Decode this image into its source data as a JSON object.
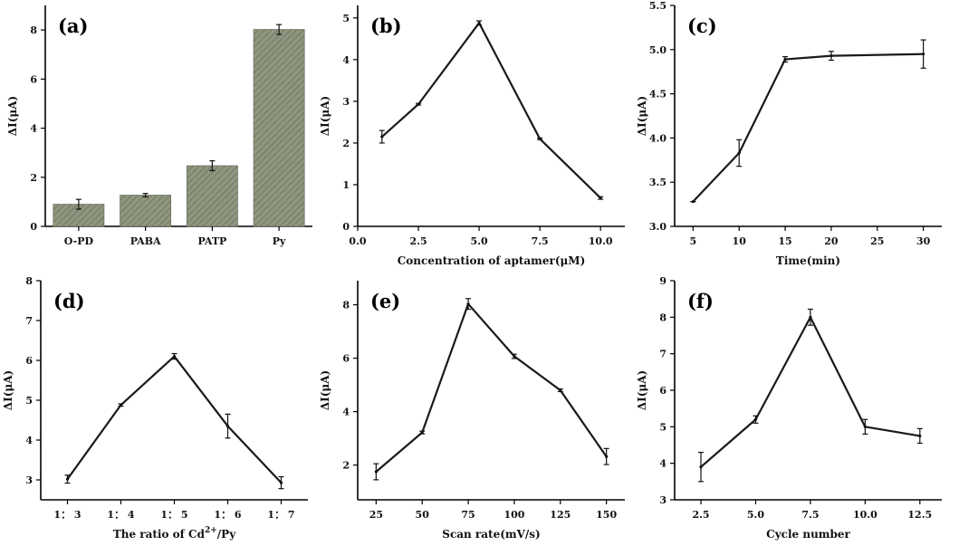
{
  "chart_data": [
    {
      "type": "bar",
      "panel": "(a)",
      "ylabel": "ΔI(μA)",
      "xlabel": "",
      "categories": [
        "O-PD",
        "PABA",
        "PATP",
        "Py"
      ],
      "values": [
        0.9,
        1.27,
        2.47,
        8.02
      ],
      "errors": [
        0.2,
        0.07,
        0.2,
        0.2
      ],
      "ylim": [
        0,
        9
      ],
      "yticks": [
        0,
        2,
        4,
        6,
        8
      ],
      "bar_color": "#8f967f"
    },
    {
      "type": "line",
      "panel": "(b)",
      "xlabel": "Concentration of aptamer(μM)",
      "ylabel": "ΔI(μA)",
      "x": [
        1.0,
        2.5,
        5.0,
        7.5,
        10.0
      ],
      "y": [
        2.15,
        2.93,
        4.88,
        2.1,
        0.68
      ],
      "errors": [
        0.15,
        0.02,
        0.05,
        0.02,
        0.03
      ],
      "xlim": [
        0,
        11
      ],
      "ylim": [
        0,
        5.3
      ],
      "xticks": [
        "0.0",
        "2.5",
        "5.0",
        "7.5",
        "10.0"
      ],
      "yticks": [
        "0",
        "1",
        "2",
        "3",
        "4",
        "5"
      ]
    },
    {
      "type": "line",
      "panel": "(c)",
      "xlabel": "Time(min)",
      "ylabel": "ΔI(μA)",
      "x": [
        5,
        10,
        15,
        20,
        30
      ],
      "y": [
        3.28,
        3.83,
        4.89,
        4.93,
        4.95
      ],
      "errors": [
        0.0,
        0.15,
        0.03,
        0.05,
        0.16
      ],
      "xlim": [
        3,
        32
      ],
      "ylim": [
        3.0,
        5.5
      ],
      "xticks": [
        "5",
        "10",
        "15",
        "20",
        "25",
        "30"
      ],
      "yticks": [
        "3.0",
        "3.5",
        "4.0",
        "4.5",
        "5.0",
        "5.5"
      ]
    },
    {
      "type": "line",
      "panel": "(d)",
      "xlabel": "The ratio of Cd",
      "xlabel_sup": "2+",
      "xlabel_tail": "/Py",
      "ylabel": "ΔI(μA)",
      "x": [
        1,
        2,
        3,
        4,
        5
      ],
      "y": [
        3.02,
        4.88,
        6.1,
        4.35,
        2.93
      ],
      "errors": [
        0.1,
        0.03,
        0.07,
        0.3,
        0.15
      ],
      "xlim": [
        0.5,
        5.5
      ],
      "ylim": [
        2.5,
        8
      ],
      "xticks": [
        "1： 3",
        "1： 4",
        "1： 5",
        "1： 6",
        "1： 7"
      ],
      "yticks": [
        "3",
        "4",
        "5",
        "6",
        "7",
        "8"
      ]
    },
    {
      "type": "line",
      "panel": "(e)",
      "xlabel": "Scan rate(mV/s)",
      "ylabel": "ΔI(μA)",
      "x": [
        25,
        50,
        75,
        100,
        125,
        150
      ],
      "y": [
        1.75,
        3.22,
        8.03,
        6.07,
        4.8,
        2.32
      ],
      "errors": [
        0.3,
        0.05,
        0.2,
        0.08,
        0.05,
        0.3
      ],
      "xlim": [
        15,
        160
      ],
      "ylim": [
        0.7,
        8.9
      ],
      "xticks": [
        "25",
        "50",
        "75",
        "100",
        "125",
        "150"
      ],
      "yticks": [
        "2",
        "4",
        "6",
        "8"
      ]
    },
    {
      "type": "line",
      "panel": "(f)",
      "xlabel": "Cycle number",
      "ylabel": "ΔI(μA)",
      "x": [
        2.5,
        5.0,
        7.5,
        10.0,
        12.5
      ],
      "y": [
        3.9,
        5.2,
        8.0,
        5.0,
        4.75
      ],
      "errors": [
        0.4,
        0.1,
        0.22,
        0.2,
        0.2
      ],
      "xlim": [
        1.3,
        13.5
      ],
      "ylim": [
        3,
        9
      ],
      "xticks": [
        "2.5",
        "5.0",
        "7.5",
        "10.0",
        "12.5"
      ],
      "yticks": [
        "3",
        "4",
        "5",
        "6",
        "7",
        "8",
        "9"
      ]
    }
  ]
}
